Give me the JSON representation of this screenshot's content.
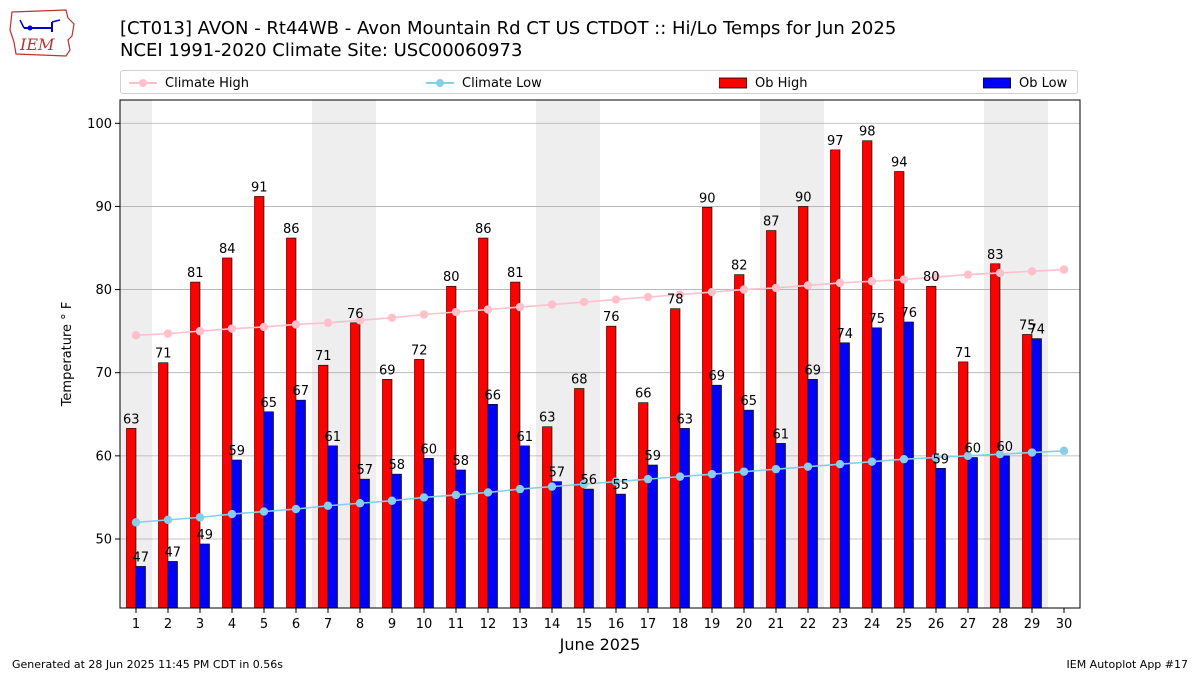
{
  "header": {
    "logo_text": "IEM",
    "title_line1": "[CT013] AVON - Rt44WB - Avon Mountain Rd CT US  CTDOT :: Hi/Lo Temps for Jun 2025",
    "title_line2": "NCEI 1991-2020 Climate Site: USC00060973"
  },
  "legend": {
    "climate_high": "Climate High",
    "climate_low": "Climate Low",
    "ob_high": "Ob High",
    "ob_low": "Ob Low"
  },
  "footer": {
    "generated": "Generated at 28 Jun 2025 11:45 PM CDT in 0.56s",
    "app": "IEM Autoplot App #17"
  },
  "colors": {
    "ob_high": "#ff0000",
    "ob_low": "#0000ff",
    "climate_high": "#ffc0cb",
    "climate_low": "#87ceeb",
    "weekend_band": "#eeeeee",
    "grid": "#b0b0b0"
  },
  "chart_data": {
    "type": "bar",
    "xlabel": "June 2025",
    "ylabel": "Temperature ° F",
    "ylim": [
      41.7,
      102.8
    ],
    "yticks": [
      50,
      60,
      70,
      80,
      90,
      100
    ],
    "categories": [
      1,
      2,
      3,
      4,
      5,
      6,
      7,
      8,
      9,
      10,
      11,
      12,
      13,
      14,
      15,
      16,
      17,
      18,
      19,
      20,
      21,
      22,
      23,
      24,
      25,
      26,
      27,
      28,
      29,
      30
    ],
    "shaded_days": [
      1,
      7,
      8,
      14,
      15,
      21,
      22,
      28,
      29
    ],
    "grid": "horizontal",
    "legend_position": "top",
    "series": [
      {
        "name": "Ob High",
        "kind": "bar",
        "values": [
          63.3,
          71.2,
          80.9,
          83.8,
          91.2,
          86.2,
          70.9,
          76.0,
          69.2,
          71.6,
          80.4,
          86.2,
          80.9,
          63.5,
          68.1,
          75.6,
          66.4,
          77.7,
          89.9,
          81.8,
          87.1,
          90.0,
          96.8,
          97.9,
          94.2,
          80.4,
          71.3,
          83.1,
          74.6,
          null
        ],
        "labels": [
          "63",
          "71",
          "81",
          "84",
          "91",
          "86",
          "71",
          "76",
          "69",
          "72",
          "80",
          "86",
          "81",
          "63",
          "68",
          "76",
          "66",
          "78",
          "90",
          "82",
          "87",
          "90",
          "97",
          "98",
          "94",
          "80",
          "71",
          "83",
          "75",
          ""
        ]
      },
      {
        "name": "Ob Low",
        "kind": "bar",
        "values": [
          46.7,
          47.3,
          49.4,
          59.5,
          65.3,
          66.7,
          61.2,
          57.2,
          57.8,
          59.7,
          58.3,
          66.2,
          61.2,
          56.9,
          56.0,
          55.4,
          58.9,
          63.3,
          68.5,
          65.5,
          61.5,
          69.2,
          73.6,
          75.4,
          76.1,
          58.5,
          59.8,
          60.0,
          74.1,
          null
        ],
        "labels": [
          "47",
          "47",
          "49",
          "59",
          "65",
          "67",
          "61",
          "57",
          "58",
          "60",
          "58",
          "66",
          "61",
          "57",
          "56",
          "55",
          "59",
          "63",
          "69",
          "65",
          "61",
          "69",
          "74",
          "75",
          "76",
          "59",
          "60",
          "60",
          "74",
          ""
        ]
      },
      {
        "name": "Climate High",
        "kind": "line",
        "values": [
          74.5,
          74.7,
          75.0,
          75.3,
          75.5,
          75.8,
          76.0,
          76.3,
          76.6,
          77.0,
          77.3,
          77.6,
          77.9,
          78.2,
          78.5,
          78.8,
          79.1,
          79.4,
          79.7,
          80.0,
          80.2,
          80.5,
          80.8,
          81.0,
          81.2,
          81.5,
          81.8,
          82.0,
          82.2,
          82.4
        ]
      },
      {
        "name": "Climate Low",
        "kind": "line",
        "values": [
          52.0,
          52.3,
          52.6,
          53.0,
          53.3,
          53.6,
          54.0,
          54.3,
          54.6,
          55.0,
          55.3,
          55.6,
          56.0,
          56.3,
          56.6,
          56.9,
          57.2,
          57.5,
          57.8,
          58.1,
          58.4,
          58.7,
          59.0,
          59.3,
          59.6,
          59.8,
          60.0,
          60.2,
          60.4,
          60.6
        ]
      }
    ]
  }
}
